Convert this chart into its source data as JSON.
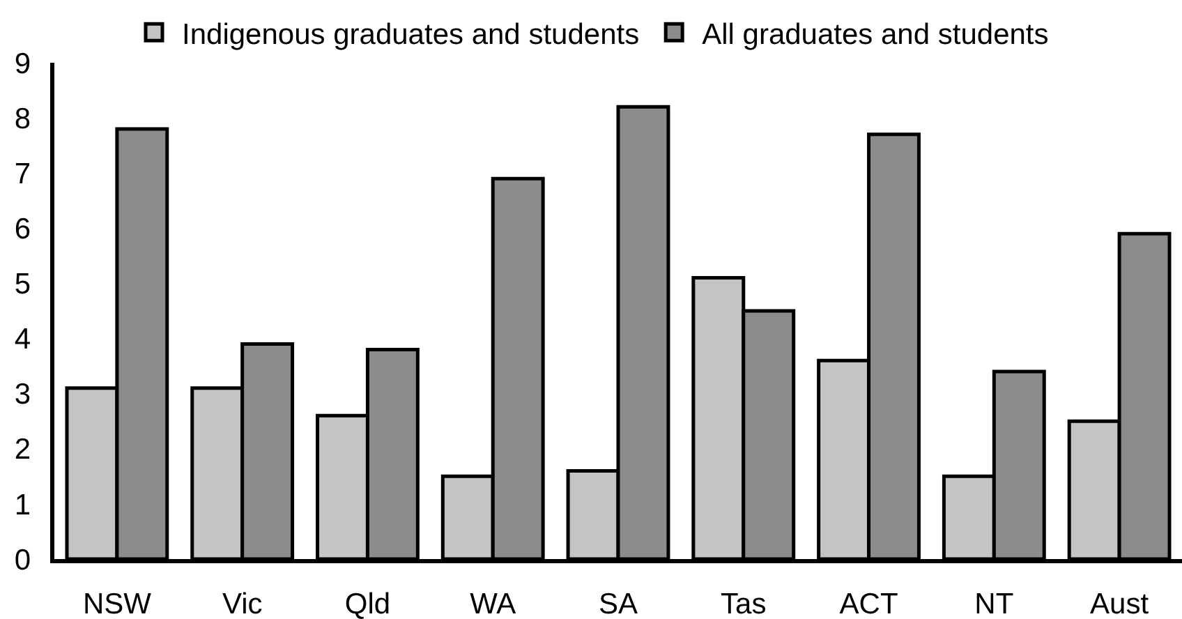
{
  "chart_data": {
    "type": "bar",
    "categories": [
      "NSW",
      "Vic",
      "Qld",
      "WA",
      "SA",
      "Tas",
      "ACT",
      "NT",
      "Aust"
    ],
    "series": [
      {
        "name": "Indigenous graduates and students",
        "color": "#c4c4c4",
        "values": [
          3.1,
          3.1,
          2.6,
          1.5,
          1.6,
          5.1,
          3.6,
          1.5,
          2.5
        ]
      },
      {
        "name": "All graduates and students",
        "color": "#8c8c8c",
        "values": [
          7.8,
          3.9,
          3.8,
          6.9,
          8.2,
          4.5,
          7.7,
          3.4,
          5.9
        ]
      }
    ],
    "ylim": [
      0,
      9
    ],
    "yticks": [
      0,
      1,
      2,
      3,
      4,
      5,
      6,
      7,
      8,
      9
    ],
    "grid": false,
    "legend": "top"
  }
}
